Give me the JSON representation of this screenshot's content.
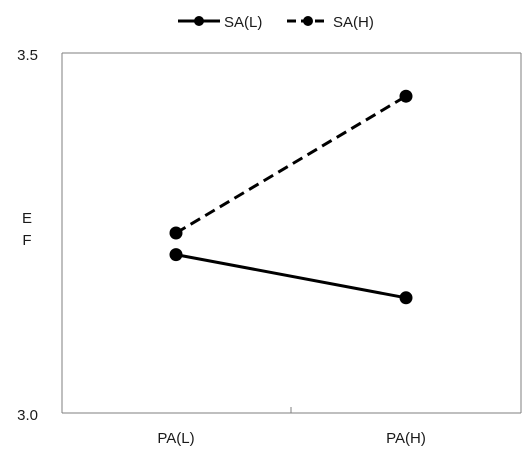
{
  "chart_data": {
    "type": "line",
    "title": "",
    "xlabel": "",
    "ylabel": "EF",
    "ylabel_lines": [
      "E",
      "F"
    ],
    "categories": [
      "PA(L)",
      "PA(H)"
    ],
    "ylim": [
      3.0,
      3.5
    ],
    "yticks": [
      "3.0",
      "3.5"
    ],
    "grid": false,
    "legend_position": "top",
    "series": [
      {
        "name": "SA(L)",
        "values": [
          3.22,
          3.16
        ],
        "line_style": "solid",
        "color": "#000000"
      },
      {
        "name": "SA(H)",
        "values": [
          3.25,
          3.44
        ],
        "line_style": "dashed",
        "color": "#000000"
      }
    ]
  }
}
